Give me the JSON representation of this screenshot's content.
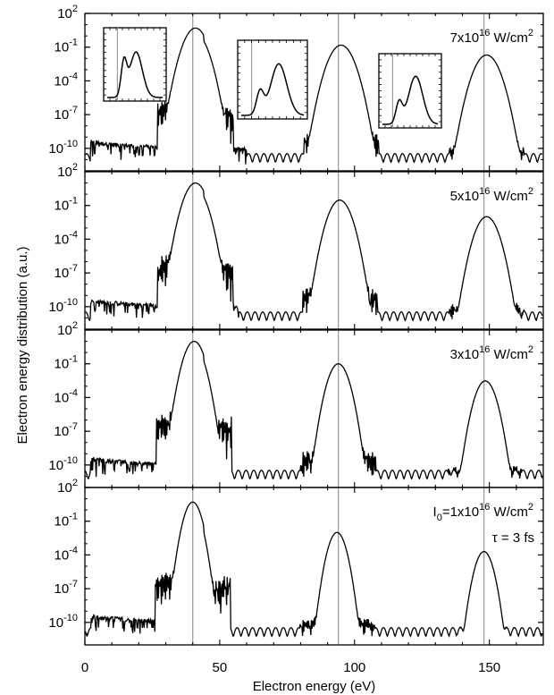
{
  "chart_data": {
    "type": "line",
    "xlabel": "Electron energy (eV)",
    "ylabel": "Electron energy distribution (a.u.)",
    "xlim": [
      0,
      170
    ],
    "x_ticks": [
      0,
      50,
      100,
      150
    ],
    "x_tick_labels": [
      "0",
      "50",
      "100",
      "150"
    ],
    "y_scale": "log",
    "ylim": [
      1e-12,
      100
    ],
    "y_ticks": [
      100,
      0.1,
      0.0001,
      1e-07,
      1e-10
    ],
    "y_tick_labels": [
      {
        "base": "10",
        "exp": "2"
      },
      {
        "base": "10",
        "exp": "-1"
      },
      {
        "base": "10",
        "exp": "-4"
      },
      {
        "base": "10",
        "exp": "-7"
      },
      {
        "base": "10",
        "exp": "-10"
      }
    ],
    "reference_lines_x": [
      40,
      94,
      148
    ],
    "line_color": "#000000",
    "reference_line_color": "#9e9e9e",
    "grid": false,
    "panels": [
      {
        "label": {
          "text": "7x10",
          "exp": "16",
          "unit": " W/cm",
          "unit_exp": "2"
        },
        "series": [
          {
            "peaks": [
              {
                "x": 41,
                "y": 5,
                "width": 1.8
              },
              {
                "x": 95,
                "y": 0.15,
                "width": 1.9
              },
              {
                "x": 149,
                "y": 0.02,
                "width": 1.9
              }
            ]
          }
        ],
        "insets": [
          {
            "around_peak_x": 40,
            "note": "zoom of first peak"
          },
          {
            "around_peak_x": 94,
            "note": "zoom of second peak"
          },
          {
            "around_peak_x": 148,
            "note": "zoom of third peak"
          }
        ]
      },
      {
        "label": {
          "text": "5x10",
          "exp": "16",
          "unit": " W/cm",
          "unit_exp": "2"
        },
        "series": [
          {
            "peaks": [
              {
                "x": 41,
                "y": 10,
                "width": 1.7
              },
              {
                "x": 94.5,
                "y": 0.3,
                "width": 1.7
              },
              {
                "x": 149,
                "y": 0.01,
                "width": 1.7
              }
            ]
          }
        ]
      },
      {
        "label": {
          "text": "3x10",
          "exp": "16",
          "unit": " W/cm",
          "unit_exp": "2"
        },
        "series": [
          {
            "peaks": [
              {
                "x": 40.5,
                "y": 10,
                "width": 1.5
              },
              {
                "x": 94,
                "y": 0.1,
                "width": 1.5
              },
              {
                "x": 148.5,
                "y": 0.003,
                "width": 1.5
              }
            ]
          }
        ]
      },
      {
        "label": {
          "text": "I",
          "sub": "0",
          "rest": "=1x10",
          "exp": "16",
          "unit": " W/cm",
          "unit_exp": "2"
        },
        "label2": "τ = 3 fs",
        "series": [
          {
            "peaks": [
              {
                "x": 40,
                "y": 5,
                "width": 1.3
              },
              {
                "x": 93.5,
                "y": 0.01,
                "width": 1.3
              },
              {
                "x": 148,
                "y": 0.0002,
                "width": 1.3
              }
            ]
          }
        ]
      }
    ]
  }
}
